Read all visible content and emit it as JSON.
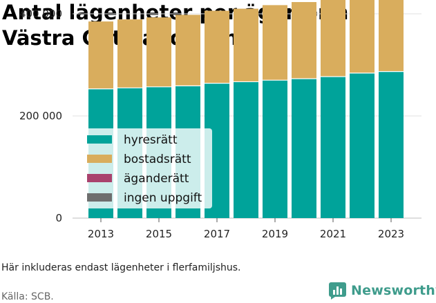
{
  "title": "Antal lägenheter per ägarform i Västra Götalands län",
  "note": "Här inkluderas endast lägenheter i flerfamiljshus.",
  "source": "Källa: SCB.",
  "brand": {
    "name": "Newsworthy",
    "color": "#3f9c8c",
    "icon": "newsworthy-chart-icon"
  },
  "chart_data": {
    "type": "bar",
    "stacked": true,
    "categories": [
      "2013",
      "2014",
      "2015",
      "2016",
      "2017",
      "2018",
      "2019",
      "2020",
      "2021",
      "2022",
      "2023"
    ],
    "x_tick_labels": [
      "2013",
      "2015",
      "2017",
      "2019",
      "2021",
      "2023"
    ],
    "y_tick_values": [
      0,
      200000,
      400000
    ],
    "y_tick_labels": [
      "0",
      "200 000",
      "400 000"
    ],
    "ylim": [
      0,
      460000
    ],
    "grid": true,
    "legend_position": "left",
    "series": [
      {
        "name": "hyresrätt",
        "color": "#00a39a",
        "values": [
          253000,
          255000,
          257000,
          259000,
          264000,
          267000,
          270000,
          273000,
          277000,
          284000,
          287000
        ]
      },
      {
        "name": "bostadsrätt",
        "color": "#d9ad5d",
        "values": [
          132000,
          134000,
          136000,
          139000,
          142000,
          143000,
          147000,
          150000,
          153000,
          157000,
          162000
        ]
      },
      {
        "name": "äganderätt",
        "color": "#a9426d",
        "values": [
          0,
          0,
          0,
          0,
          0,
          0,
          0,
          0,
          0,
          0,
          0
        ]
      },
      {
        "name": "ingen uppgift",
        "color": "#6e6e6e",
        "values": [
          0,
          0,
          0,
          0,
          0,
          0,
          0,
          0,
          0,
          0,
          0
        ]
      }
    ]
  }
}
